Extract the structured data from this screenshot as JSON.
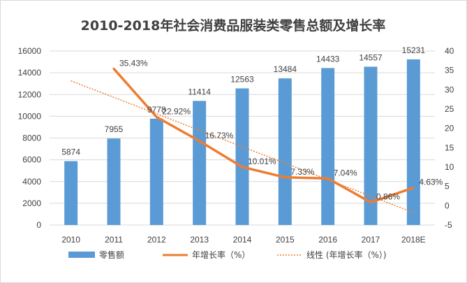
{
  "chart_data": {
    "type": "bar+line",
    "title": "2010-2018年社会消费品服装类零售总额及增长率",
    "categories": [
      "2010",
      "2011",
      "2012",
      "2013",
      "2014",
      "2015",
      "2016",
      "2017",
      "2018E"
    ],
    "series": [
      {
        "name": "零售额",
        "type": "bar",
        "axis": "left",
        "color": "#5b9bd5",
        "values": [
          5874,
          7955,
          9778,
          11414,
          12563,
          13484,
          14433,
          14557,
          15231
        ],
        "labels": [
          "5874",
          "7955",
          "9778",
          "11414",
          "12563",
          "13484",
          "14433",
          "14557",
          "15231"
        ]
      },
      {
        "name": "年增长率（%）",
        "type": "line",
        "axis": "right",
        "color": "#ed7d31",
        "values": [
          null,
          35.43,
          22.92,
          16.73,
          10.01,
          7.33,
          7.04,
          0.86,
          4.63
        ],
        "labels": [
          "",
          "35.43%",
          "22.92%",
          "16.73%",
          "10.01%",
          "7.33%",
          "7.04%",
          "0.86%",
          "4.63%"
        ]
      },
      {
        "name": "线性 (年增长率（%）)",
        "type": "trendline",
        "axis": "right",
        "color": "#ed7d31"
      }
    ],
    "y_left": {
      "min": 0,
      "max": 16000,
      "ticks": [
        "0",
        "2000",
        "4000",
        "6000",
        "8000",
        "10000",
        "12000",
        "14000",
        "16000"
      ]
    },
    "y_right": {
      "min": -5,
      "max": 40,
      "ticks": [
        "-5",
        "0",
        "5",
        "10",
        "15",
        "20",
        "25",
        "30",
        "35",
        "40"
      ]
    },
    "grid": true,
    "legend_position": "bottom"
  }
}
